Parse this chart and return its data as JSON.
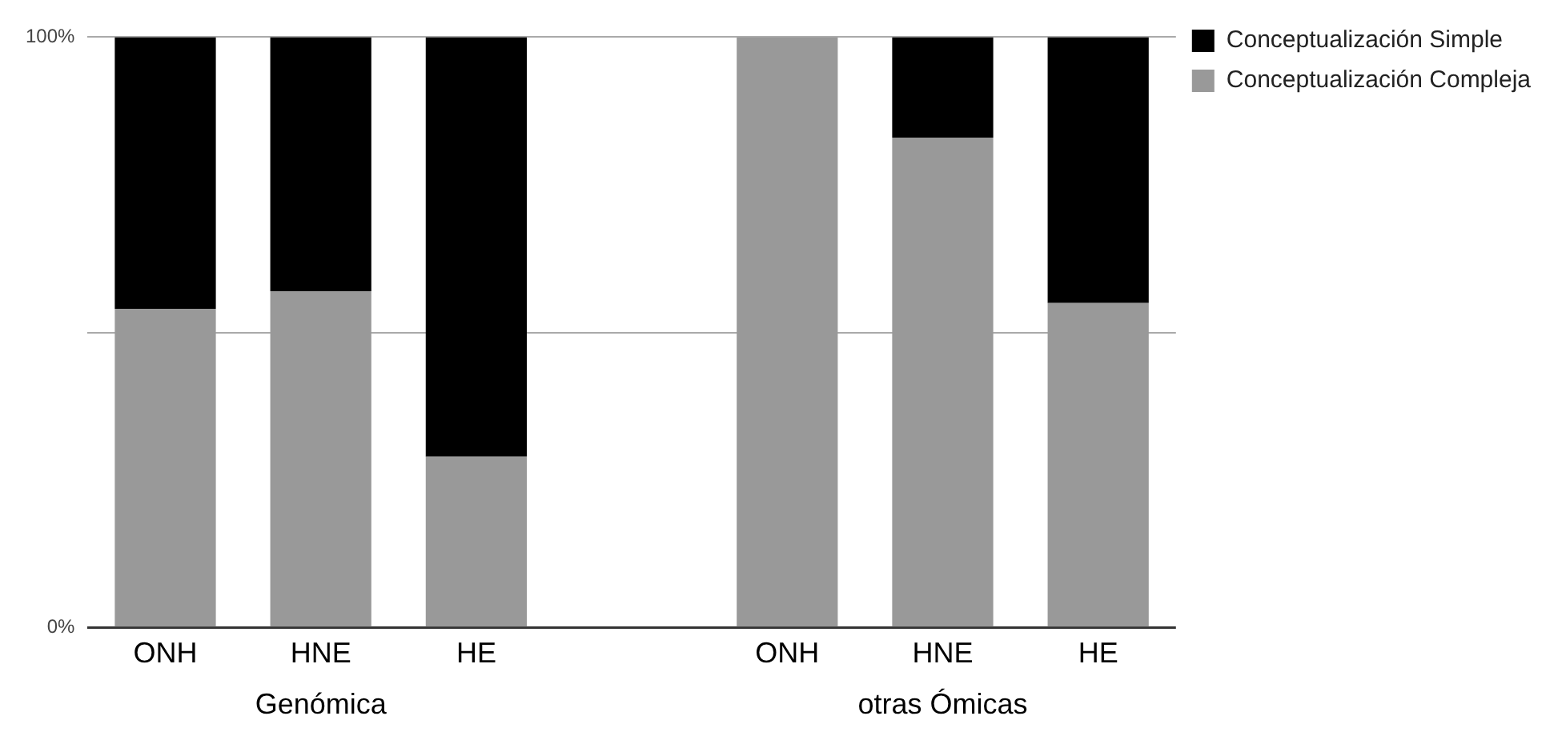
{
  "chart_data": {
    "type": "bar",
    "stacked": true,
    "categories": [
      "ONH",
      "HNE",
      "HE",
      null,
      "ONH",
      "HNE",
      "HE"
    ],
    "series": [
      {
        "name": "Conceptualización Compleja",
        "color": "#999999",
        "values": [
          54,
          57,
          29,
          null,
          100,
          83,
          55
        ]
      },
      {
        "name": "Conceptualización Simple",
        "color": "#000000",
        "values": [
          46,
          43,
          71,
          null,
          0,
          17,
          45
        ]
      }
    ],
    "ylim": [
      0,
      100
    ],
    "yticks": [
      {
        "value": 0,
        "label": "0%"
      },
      {
        "value": 50,
        "label": null
      },
      {
        "value": 100,
        "label": "100%"
      }
    ],
    "grid": "y",
    "legend": "top right",
    "annotations": [
      "Genómica",
      "otras Ómicas"
    ]
  }
}
